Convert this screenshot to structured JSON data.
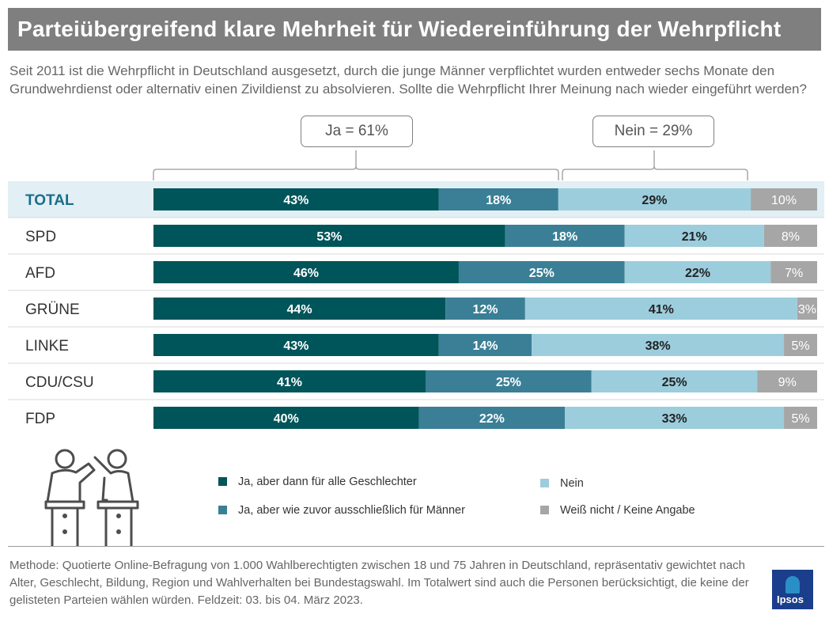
{
  "title": "Parteiübergreifend klare Mehrheit für Wiedereinführung der Wehrpflicht",
  "question": "Seit 2011 ist die Wehrpflicht in Deutschland ausgesetzt, durch die junge Männer verpflichtet wurden entweder sechs Monate den Grundwehrdienst oder alternativ einen Zivildienst zu absolvieren. Sollte die Wehrpflicht Ihrer Meinung nach wieder eingeführt werden?",
  "callouts": {
    "ja": "Ja = 61%",
    "nein": "Nein = 29%"
  },
  "icons": {
    "people": "two-people-debate-icon"
  },
  "chart_data": {
    "type": "bar",
    "orientation": "horizontal",
    "stacked": true,
    "value_unit": "%",
    "categories": [
      "TOTAL",
      "SPD",
      "AFD",
      "GRÜNE",
      "LINKE",
      "CDU/CSU",
      "FDP"
    ],
    "series": [
      {
        "name": "Ja, aber dann für alle Geschlechter",
        "color": "#00555a",
        "label_color": "#ffffff",
        "values": [
          43,
          53,
          46,
          44,
          43,
          41,
          40
        ]
      },
      {
        "name": "Ja, aber wie zuvor ausschließlich für Männer",
        "color": "#3a7f96",
        "label_color": "#ffffff",
        "values": [
          18,
          18,
          25,
          12,
          14,
          25,
          22
        ]
      },
      {
        "name": "Nein",
        "color": "#9ccddd",
        "label_color": "#222222",
        "values": [
          29,
          21,
          22,
          41,
          38,
          25,
          33
        ]
      },
      {
        "name": "Weiß nicht / Keine Angabe",
        "color": "#a6a6a6",
        "label_color": "#ffffff",
        "values": [
          10,
          8,
          7,
          3,
          5,
          9,
          5
        ]
      }
    ],
    "highlight_category": "TOTAL",
    "highlight_color": "#e2eff5",
    "label_color": "#333333",
    "highlight_label_color": "#1a6e8a",
    "legend": {
      "placement": "bottom",
      "columns": 2
    }
  },
  "methodology": "Methode: Quotierte Online-Befragung von 1.000 Wahlberechtigten zwischen 18 und 75 Jahren in Deutschland, repräsentativ gewichtet nach Alter, Geschlecht, Bildung, Region und Wahlverhalten bei Bundestagswahl. Im Totalwert sind auch die Personen berücksichtigt, die keine der gelisteten Parteien wählen würden. Feldzeit: 03. bis 04. März 2023.",
  "logo_text": "Ipsos"
}
